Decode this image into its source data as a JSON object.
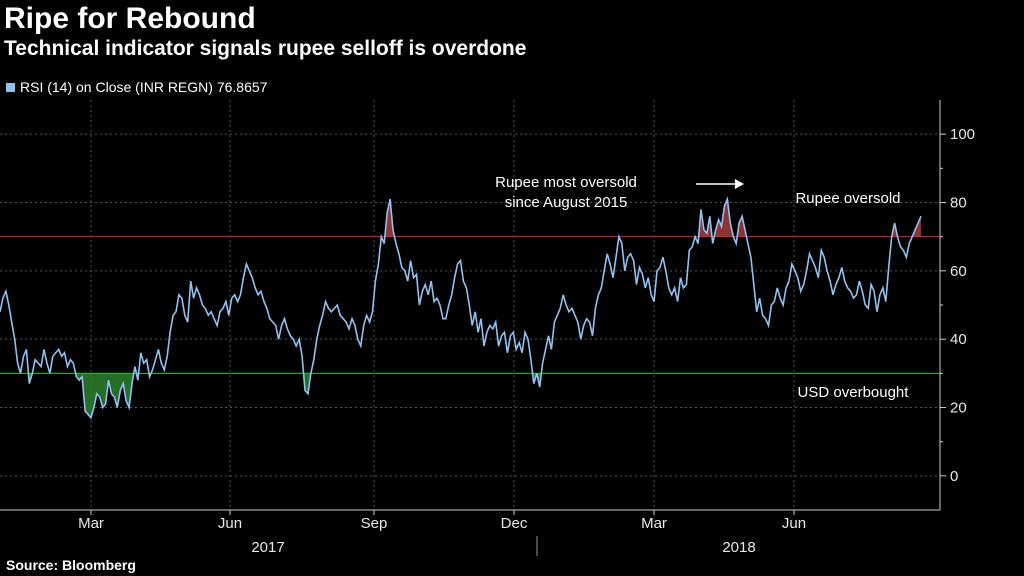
{
  "header": {
    "title": "Ripe for Rebound",
    "subtitle": "Technical indicator signals rupee selloff is overdone"
  },
  "legend": {
    "label": "RSI (14) on Close (INR REGN) 76.8657"
  },
  "footer": {
    "source": "Source: Bloomberg"
  },
  "annotations": {
    "oversold_note_line1": "Rupee most oversold",
    "oversold_note_line2": "since August 2015",
    "upper_label": "Rupee oversold",
    "lower_label": "USD overbought"
  },
  "colors": {
    "series": "#8fc2f1",
    "upper_threshold": "#d9262a",
    "lower_threshold": "#2fbf2f",
    "upper_fill": "#9b3a3a",
    "lower_fill": "#2a7a2a",
    "grid": "#555555"
  },
  "chart_data": {
    "type": "line",
    "series": [
      {
        "name": "RSI (14) on Close (INR REGN)",
        "y": [
          48,
          52,
          54,
          50,
          45,
          40,
          33,
          30,
          35,
          37,
          27,
          30,
          34,
          33,
          32,
          37,
          33,
          30,
          35,
          36,
          37,
          35,
          36,
          32,
          34,
          33,
          29,
          28,
          29,
          19,
          18,
          17,
          20,
          24,
          23,
          20,
          21,
          28,
          24,
          23,
          20,
          25,
          27,
          22,
          20,
          27,
          32,
          28,
          36,
          33,
          34,
          29,
          31,
          34,
          37,
          33,
          31,
          35,
          42,
          47,
          48,
          53,
          52,
          47,
          45,
          57,
          52,
          55,
          53,
          50,
          49,
          47,
          48,
          46,
          44,
          48,
          49,
          51,
          47,
          52,
          53,
          51,
          53,
          58,
          62,
          60,
          58,
          55,
          53,
          54,
          51,
          49,
          46,
          45,
          44,
          40,
          44,
          46,
          43,
          41,
          40,
          38,
          40,
          35,
          25,
          24,
          30,
          34,
          40,
          44,
          47,
          51,
          49,
          48,
          49,
          50,
          47,
          46,
          45,
          43,
          46,
          44,
          40,
          38,
          44,
          47,
          45,
          48,
          57,
          62,
          70,
          68,
          77,
          81,
          72,
          68,
          65,
          61,
          60,
          57,
          63,
          58,
          59,
          50,
          54,
          56,
          53,
          57,
          51,
          52,
          50,
          46,
          46,
          50,
          53,
          58,
          62,
          63,
          57,
          55,
          50,
          44,
          48,
          42,
          46,
          38,
          42,
          44,
          43,
          45,
          38,
          41,
          42,
          36,
          41,
          42,
          37,
          39,
          36,
          42,
          40,
          34,
          27,
          30,
          26,
          33,
          37,
          41,
          37,
          45,
          47,
          49,
          53,
          50,
          48,
          49,
          47,
          45,
          40,
          44,
          46,
          45,
          41,
          49,
          53,
          55,
          60,
          65,
          62,
          58,
          64,
          70,
          68,
          60,
          64,
          65,
          63,
          56,
          61,
          59,
          55,
          58,
          53,
          51,
          60,
          61,
          64,
          60,
          55,
          53,
          55,
          51,
          58,
          55,
          56,
          66,
          67,
          70,
          68,
          78,
          72,
          71,
          76,
          68,
          72,
          75,
          73,
          79,
          81,
          74,
          70,
          68,
          74,
          76,
          72,
          68,
          64,
          56,
          48,
          52,
          47,
          46,
          44,
          50,
          51,
          55,
          52,
          50,
          55,
          57,
          62,
          60,
          58,
          54,
          56,
          60,
          65,
          63,
          61,
          58,
          66,
          64,
          60,
          57,
          53,
          56,
          58,
          61,
          57,
          55,
          54,
          52,
          53,
          57,
          54,
          50,
          49,
          56,
          54,
          48,
          53,
          55,
          51,
          61,
          70,
          74,
          70,
          67,
          66,
          64,
          68,
          70,
          72,
          74,
          76
        ]
      }
    ],
    "ylim": [
      -10,
      110
    ],
    "yticks": [
      0,
      20,
      40,
      60,
      80,
      100
    ],
    "x_tick_labels": [
      "Mar",
      "Jun",
      "Sep",
      "Dec",
      "Mar",
      "Jun"
    ],
    "x_group_labels": [
      "2017",
      "2018"
    ],
    "thresholds": [
      70,
      30
    ],
    "grid": true,
    "legend_position": "top-left",
    "last_value": 76.8657
  }
}
